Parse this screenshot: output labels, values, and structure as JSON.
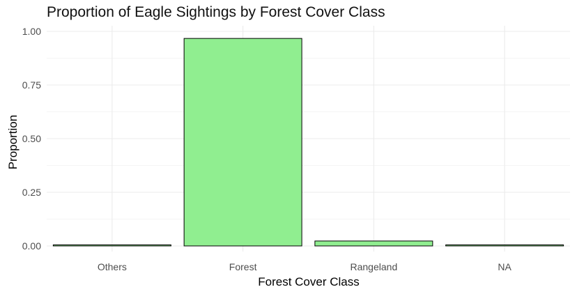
{
  "chart_data": {
    "type": "bar",
    "title": "Proportion of Eagle Sightings by Forest Cover Class",
    "xlabel": "Forest Cover Class",
    "ylabel": "Proportion",
    "categories": [
      "Others",
      "Forest",
      "Rangeland",
      "NA"
    ],
    "values": [
      0.005,
      0.967,
      0.023,
      0.005
    ],
    "ylim": [
      0,
      1.05
    ],
    "yticks": [
      "0.00",
      "0.25",
      "0.50",
      "0.75",
      "1.00"
    ],
    "grid": true,
    "legend": "none",
    "bar_fill": "#90EE90",
    "bar_stroke": "#000000",
    "grid_color": "#ebebeb"
  }
}
